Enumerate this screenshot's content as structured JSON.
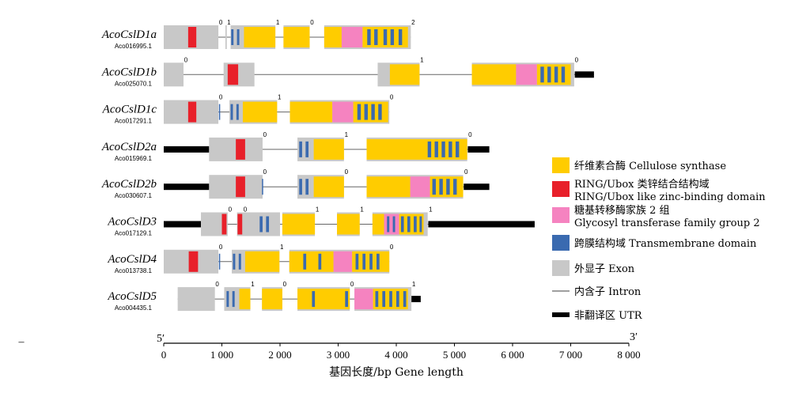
{
  "colors": {
    "exon": "#c8c8c8",
    "cellulose_synthase": "#ffcc00",
    "ring_ubox": "#e8202a",
    "glycosyl": "#f583c0",
    "transmembrane": "#3a6ab0",
    "intron": "#666666",
    "utr": "#000000"
  },
  "axis": {
    "min": 0,
    "max": 8000,
    "ticks": [
      0,
      1000,
      2000,
      3000,
      4000,
      5000,
      6000,
      7000,
      8000
    ],
    "tick_labels": [
      "0",
      "1 000",
      "2 000",
      "3 000",
      "4 000",
      "5 000",
      "6 000",
      "7 000",
      "8 000"
    ],
    "title": "基因长度/bp  Gene length",
    "left_end_label": "5′",
    "right_end_label": "3′",
    "stray_mark": "–"
  },
  "legend": [
    {
      "key": "cellulose_synthase",
      "label": "纤维素合酶 Cellulose synthase"
    },
    {
      "key": "ring_ubox",
      "label": "RING/Ubox 类锌结合结构域",
      "label2": "RING/Ubox like zinc-binding domain"
    },
    {
      "key": "glycosyl",
      "label": "糖基转移酶家族 2 组",
      "label2": "Glycosyl transferase family group 2"
    },
    {
      "key": "transmembrane",
      "label": "跨膜结构域 Transmembrane domain"
    },
    {
      "key": "exon",
      "label": "外显子 Exon"
    },
    {
      "key": "intron",
      "label": "内含子 Intron"
    },
    {
      "key": "utr",
      "label": "非翻译区 UTR"
    }
  ],
  "genes": [
    {
      "name": "AcoCslD1a",
      "id": "Aco016995.1",
      "utr": [],
      "exons": [
        [
          0,
          940
        ],
        [
          1060,
          1085
        ],
        [
          1150,
          1920
        ],
        [
          2060,
          2510
        ],
        [
          2760,
          4250
        ]
      ],
      "domains": [
        {
          "t": "ring_ubox",
          "s": [
            420,
            560
          ]
        },
        {
          "t": "transmembrane",
          "s": [
            1160,
            1200
          ]
        },
        {
          "t": "transmembrane",
          "s": [
            1260,
            1300
          ]
        },
        {
          "t": "cellulose_synthase",
          "s": [
            1380,
            1920
          ]
        },
        {
          "t": "cellulose_synthase",
          "s": [
            2060,
            2510
          ]
        },
        {
          "t": "cellulose_synthase",
          "s": [
            2760,
            3060
          ]
        },
        {
          "t": "glycosyl",
          "s": [
            3060,
            3420
          ]
        },
        {
          "t": "cellulose_synthase",
          "s": [
            3420,
            4200
          ]
        },
        {
          "t": "transmembrane",
          "s": [
            3500,
            3560
          ]
        },
        {
          "t": "transmembrane",
          "s": [
            3620,
            3680
          ]
        },
        {
          "t": "transmembrane",
          "s": [
            3780,
            3840
          ]
        },
        {
          "t": "transmembrane",
          "s": [
            3900,
            3960
          ]
        },
        {
          "t": "transmembrane",
          "s": [
            4040,
            4100
          ]
        }
      ],
      "phases": [
        {
          "x": 950,
          "v": "0"
        },
        {
          "x": 1090,
          "v": "1"
        },
        {
          "x": 1930,
          "v": "1"
        },
        {
          "x": 2520,
          "v": "0"
        },
        {
          "x": 4260,
          "v": "2"
        }
      ]
    },
    {
      "name": "AcoCslD1b",
      "id": "Aco025070.1",
      "utr": [
        [
          7070,
          7400
        ]
      ],
      "exons": [
        [
          0,
          340
        ],
        [
          1030,
          1560
        ],
        [
          3680,
          4400
        ],
        [
          5300,
          7060
        ]
      ],
      "domains": [
        {
          "t": "ring_ubox",
          "s": [
            1100,
            1280
          ]
        },
        {
          "t": "cellulose_synthase",
          "s": [
            3890,
            4400
          ]
        },
        {
          "t": "cellulose_synthase",
          "s": [
            5300,
            6060
          ]
        },
        {
          "t": "glycosyl",
          "s": [
            6060,
            6420
          ]
        },
        {
          "t": "cellulose_synthase",
          "s": [
            6420,
            7000
          ]
        },
        {
          "t": "transmembrane",
          "s": [
            6480,
            6540
          ]
        },
        {
          "t": "transmembrane",
          "s": [
            6600,
            6660
          ]
        },
        {
          "t": "transmembrane",
          "s": [
            6720,
            6780
          ]
        },
        {
          "t": "transmembrane",
          "s": [
            6840,
            6900
          ]
        }
      ],
      "phases": [
        {
          "x": 350,
          "v": "0"
        },
        {
          "x": 4410,
          "v": "1"
        },
        {
          "x": 7070,
          "v": "0"
        }
      ]
    },
    {
      "name": "AcoCslD1c",
      "id": "Aco017291.1",
      "utr": [],
      "exons": [
        [
          0,
          940
        ],
        [
          1130,
          1950
        ],
        [
          2170,
          3880
        ]
      ],
      "domains": [
        {
          "t": "ring_ubox",
          "s": [
            420,
            560
          ]
        },
        {
          "t": "transmembrane",
          "s": [
            950,
            970
          ]
        },
        {
          "t": "transmembrane",
          "s": [
            1150,
            1190
          ]
        },
        {
          "t": "transmembrane",
          "s": [
            1250,
            1290
          ]
        },
        {
          "t": "cellulose_synthase",
          "s": [
            1360,
            1950
          ]
        },
        {
          "t": "cellulose_synthase",
          "s": [
            2170,
            2900
          ]
        },
        {
          "t": "glycosyl",
          "s": [
            2900,
            3260
          ]
        },
        {
          "t": "cellulose_synthase",
          "s": [
            3260,
            3860
          ]
        },
        {
          "t": "transmembrane",
          "s": [
            3330,
            3390
          ]
        },
        {
          "t": "transmembrane",
          "s": [
            3450,
            3510
          ]
        },
        {
          "t": "transmembrane",
          "s": [
            3570,
            3630
          ]
        },
        {
          "t": "transmembrane",
          "s": [
            3690,
            3750
          ]
        }
      ],
      "phases": [
        {
          "x": 950,
          "v": "0"
        },
        {
          "x": 1960,
          "v": "1"
        },
        {
          "x": 3890,
          "v": "0"
        }
      ]
    },
    {
      "name": "AcoCslD2a",
      "id": "Aco015969.1",
      "utr": [
        [
          0,
          780
        ],
        [
          5230,
          5600
        ]
      ],
      "exons": [
        [
          780,
          1700
        ],
        [
          2300,
          3100
        ],
        [
          3490,
          5220
        ]
      ],
      "domains": [
        {
          "t": "ring_ubox",
          "s": [
            1240,
            1400
          ]
        },
        {
          "t": "transmembrane",
          "s": [
            2330,
            2380
          ]
        },
        {
          "t": "transmembrane",
          "s": [
            2440,
            2490
          ]
        },
        {
          "t": "cellulose_synthase",
          "s": [
            2580,
            3100
          ]
        },
        {
          "t": "cellulose_synthase",
          "s": [
            3490,
            5220
          ]
        },
        {
          "t": "transmembrane",
          "s": [
            4540,
            4600
          ]
        },
        {
          "t": "transmembrane",
          "s": [
            4660,
            4720
          ]
        },
        {
          "t": "transmembrane",
          "s": [
            4780,
            4840
          ]
        },
        {
          "t": "transmembrane",
          "s": [
            4900,
            4960
          ]
        },
        {
          "t": "transmembrane",
          "s": [
            5020,
            5080
          ]
        }
      ],
      "phases": [
        {
          "x": 1710,
          "v": "0"
        },
        {
          "x": 3110,
          "v": "1"
        },
        {
          "x": 5240,
          "v": "0"
        }
      ]
    },
    {
      "name": "AcoCslD2b",
      "id": "Aco030607.1",
      "utr": [
        [
          0,
          780
        ],
        [
          5160,
          5600
        ]
      ],
      "exons": [
        [
          780,
          1700
        ],
        [
          2300,
          3100
        ],
        [
          3490,
          5150
        ]
      ],
      "domains": [
        {
          "t": "ring_ubox",
          "s": [
            1240,
            1400
          ]
        },
        {
          "t": "transmembrane",
          "s": [
            1690,
            1710
          ]
        },
        {
          "t": "transmembrane",
          "s": [
            2330,
            2380
          ]
        },
        {
          "t": "transmembrane",
          "s": [
            2440,
            2490
          ]
        },
        {
          "t": "cellulose_synthase",
          "s": [
            2580,
            3100
          ]
        },
        {
          "t": "cellulose_synthase",
          "s": [
            3490,
            4240
          ]
        },
        {
          "t": "glycosyl",
          "s": [
            4240,
            4580
          ]
        },
        {
          "t": "cellulose_synthase",
          "s": [
            4580,
            5150
          ]
        },
        {
          "t": "transmembrane",
          "s": [
            4620,
            4680
          ]
        },
        {
          "t": "transmembrane",
          "s": [
            4740,
            4800
          ]
        },
        {
          "t": "transmembrane",
          "s": [
            4860,
            4920
          ]
        },
        {
          "t": "transmembrane",
          "s": [
            4980,
            5040
          ]
        }
      ],
      "phases": [
        {
          "x": 1710,
          "v": "0"
        },
        {
          "x": 3110,
          "v": "0"
        },
        {
          "x": 5170,
          "v": "0"
        }
      ]
    },
    {
      "name": "AcoCslD3",
      "id": "Aco017129.1",
      "utr": [
        [
          0,
          640
        ],
        [
          4550,
          6380
        ]
      ],
      "exons": [
        [
          640,
          1100
        ],
        [
          1260,
          2000
        ],
        [
          2040,
          2600
        ],
        [
          2980,
          3370
        ],
        [
          3590,
          4540
        ]
      ],
      "domains": [
        {
          "t": "ring_ubox",
          "s": [
            1000,
            1080
          ]
        },
        {
          "t": "ring_ubox",
          "s": [
            1270,
            1350
          ]
        },
        {
          "t": "transmembrane",
          "s": [
            1650,
            1700
          ]
        },
        {
          "t": "transmembrane",
          "s": [
            1760,
            1810
          ]
        },
        {
          "t": "cellulose_synthase",
          "s": [
            2040,
            2600
          ]
        },
        {
          "t": "cellulose_synthase",
          "s": [
            2980,
            3370
          ]
        },
        {
          "t": "cellulose_synthase",
          "s": [
            3590,
            3790
          ]
        },
        {
          "t": "glycosyl",
          "s": [
            3790,
            4050
          ]
        },
        {
          "t": "cellulose_synthase",
          "s": [
            4050,
            4470
          ]
        },
        {
          "t": "transmembrane",
          "s": [
            3840,
            3880
          ]
        },
        {
          "t": "transmembrane",
          "s": [
            3940,
            3980
          ]
        },
        {
          "t": "transmembrane",
          "s": [
            4080,
            4130
          ]
        },
        {
          "t": "transmembrane",
          "s": [
            4190,
            4240
          ]
        },
        {
          "t": "transmembrane",
          "s": [
            4300,
            4350
          ]
        },
        {
          "t": "transmembrane",
          "s": [
            4400,
            4440
          ]
        }
      ],
      "phases": [
        {
          "x": 1110,
          "v": "0"
        },
        {
          "x": 1370,
          "v": "0"
        },
        {
          "x": 2610,
          "v": "1"
        },
        {
          "x": 3380,
          "v": "1"
        },
        {
          "x": 4560,
          "v": "1"
        }
      ]
    },
    {
      "name": "AcoCslD4",
      "id": "Aco013738.1",
      "utr": [],
      "exons": [
        [
          0,
          940
        ],
        [
          1170,
          1990
        ],
        [
          2160,
          3880
        ]
      ],
      "domains": [
        {
          "t": "ring_ubox",
          "s": [
            430,
            590
          ]
        },
        {
          "t": "transmembrane",
          "s": [
            950,
            970
          ]
        },
        {
          "t": "transmembrane",
          "s": [
            1190,
            1230
          ]
        },
        {
          "t": "transmembrane",
          "s": [
            1290,
            1330
          ]
        },
        {
          "t": "cellulose_synthase",
          "s": [
            1400,
            1990
          ]
        },
        {
          "t": "cellulose_synthase",
          "s": [
            2160,
            2920
          ]
        },
        {
          "t": "transmembrane",
          "s": [
            2400,
            2450
          ]
        },
        {
          "t": "transmembrane",
          "s": [
            2660,
            2710
          ]
        },
        {
          "t": "glycosyl",
          "s": [
            2920,
            3240
          ]
        },
        {
          "t": "cellulose_synthase",
          "s": [
            3240,
            3880
          ]
        },
        {
          "t": "transmembrane",
          "s": [
            3300,
            3350
          ]
        },
        {
          "t": "transmembrane",
          "s": [
            3420,
            3470
          ]
        },
        {
          "t": "transmembrane",
          "s": [
            3540,
            3590
          ]
        },
        {
          "t": "transmembrane",
          "s": [
            3660,
            3710
          ]
        }
      ],
      "phases": [
        {
          "x": 950,
          "v": "0"
        },
        {
          "x": 2000,
          "v": "1"
        },
        {
          "x": 3890,
          "v": "0"
        }
      ]
    },
    {
      "name": "AcoCslD5",
      "id": "Aco004435.1",
      "utr": [
        [
          4260,
          4420
        ]
      ],
      "exons": [
        [
          240,
          880
        ],
        [
          1040,
          1490
        ],
        [
          1690,
          2040
        ],
        [
          2300,
          3200
        ],
        [
          3280,
          4260
        ]
      ],
      "domains": [
        {
          "t": "transmembrane",
          "s": [
            1080,
            1120
          ]
        },
        {
          "t": "transmembrane",
          "s": [
            1180,
            1220
          ]
        },
        {
          "t": "cellulose_synthase",
          "s": [
            1300,
            1490
          ]
        },
        {
          "t": "cellulose_synthase",
          "s": [
            1690,
            2040
          ]
        },
        {
          "t": "cellulose_synthase",
          "s": [
            2300,
            3200
          ]
        },
        {
          "t": "transmembrane",
          "s": [
            2550,
            2600
          ]
        },
        {
          "t": "transmembrane",
          "s": [
            3120,
            3170
          ]
        },
        {
          "t": "glycosyl",
          "s": [
            3280,
            3600
          ]
        },
        {
          "t": "cellulose_synthase",
          "s": [
            3600,
            4200
          ]
        },
        {
          "t": "transmembrane",
          "s": [
            3640,
            3690
          ]
        },
        {
          "t": "transmembrane",
          "s": [
            3760,
            3810
          ]
        },
        {
          "t": "transmembrane",
          "s": [
            3880,
            3930
          ]
        },
        {
          "t": "transmembrane",
          "s": [
            4000,
            4050
          ]
        },
        {
          "t": "transmembrane",
          "s": [
            4120,
            4170
          ]
        }
      ],
      "phases": [
        {
          "x": 890,
          "v": "0"
        },
        {
          "x": 1500,
          "v": "1"
        },
        {
          "x": 2050,
          "v": "0"
        },
        {
          "x": 3210,
          "v": "0"
        },
        {
          "x": 4270,
          "v": "1"
        }
      ]
    }
  ]
}
